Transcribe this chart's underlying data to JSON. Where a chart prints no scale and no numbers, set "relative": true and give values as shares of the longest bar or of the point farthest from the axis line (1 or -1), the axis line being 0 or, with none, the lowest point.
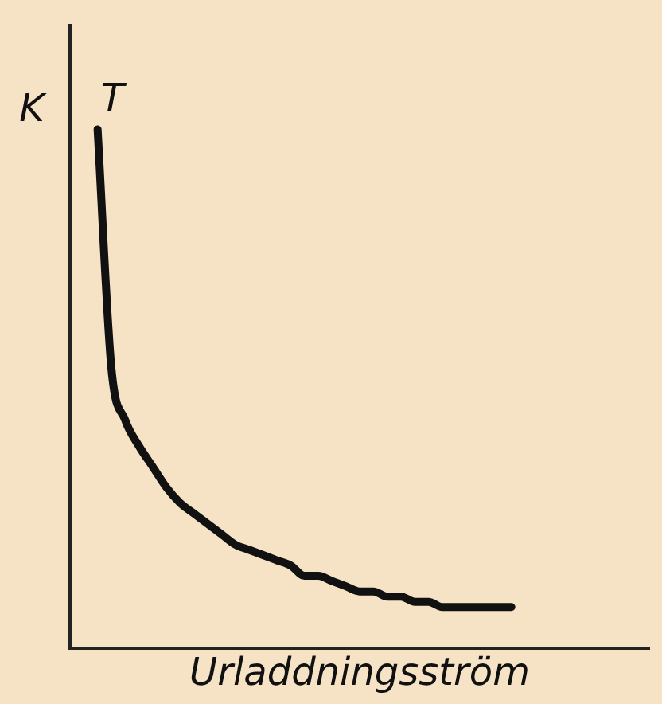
{
  "chart_data": {
    "type": "line",
    "relative": true,
    "xlabel": "Urladdningsström",
    "ylabel": "K",
    "annotations": [
      "T"
    ],
    "grid": false,
    "legend": false,
    "marker": "none",
    "line_style": "solid",
    "categories": [
      null,
      null,
      null,
      null,
      null,
      null,
      null,
      null,
      null,
      null,
      null,
      null,
      null,
      null,
      null,
      null,
      null,
      null,
      null,
      null,
      null,
      null,
      null,
      null,
      null,
      null,
      null,
      null,
      null,
      null,
      null,
      null,
      null,
      null,
      null,
      null,
      null,
      null,
      null,
      null,
      null,
      null,
      null
    ],
    "series": [
      {
        "color": "#111111",
        "values": [
          null,
          null,
          1.0,
          0.54,
          0.44,
          0.39,
          0.35,
          0.31,
          0.28,
          0.26,
          0.24,
          0.22,
          0.2,
          0.19,
          0.18,
          0.17,
          0.16,
          0.14,
          0.14,
          0.13,
          0.12,
          0.11,
          0.11,
          0.1,
          0.1,
          0.09,
          0.09,
          0.08,
          0.08,
          0.08,
          0.08,
          0.08,
          0.08,
          null,
          null,
          null,
          null,
          null,
          null,
          null,
          null,
          null,
          null
        ]
      }
    ]
  }
}
